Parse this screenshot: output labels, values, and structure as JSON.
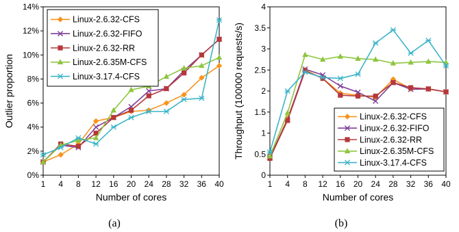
{
  "chart_data": [
    {
      "type": "line",
      "caption": "(a)",
      "x": [
        "1",
        "4",
        "8",
        "12",
        "16",
        "20",
        "24",
        "28",
        "32",
        "36",
        "40"
      ],
      "xlabel": "Number of cores",
      "ylabel": "Outlier proportion",
      "ylim": [
        0,
        14
      ],
      "yticks": [
        "0%",
        "2%",
        "4%",
        "6%",
        "8%",
        "10%",
        "12%",
        "14%"
      ],
      "legend_position": "top-left",
      "series": [
        {
          "name": "Linux-2.6.32-CFS",
          "color": "#f7941d",
          "marker": "diamond",
          "values": [
            1.1,
            1.7,
            2.6,
            4.5,
            4.8,
            5.3,
            5.4,
            6.0,
            6.7,
            8.1,
            9.1
          ]
        },
        {
          "name": "Linux-2.6.32-FIFO",
          "color": "#7e3f98",
          "marker": "x",
          "values": [
            1.1,
            2.5,
            2.3,
            4.0,
            4.8,
            5.7,
            7.0,
            7.2,
            8.7,
            10.0,
            11.3
          ]
        },
        {
          "name": "Linux-2.6.32-RR",
          "color": "#b5383a",
          "marker": "square",
          "values": [
            1.1,
            2.6,
            2.4,
            3.5,
            4.8,
            5.4,
            6.6,
            7.2,
            8.5,
            10.0,
            11.3
          ]
        },
        {
          "name": "Linux-2.6.35M-CFS",
          "color": "#8dc63f",
          "marker": "triangle",
          "values": [
            1.1,
            2.5,
            2.9,
            3.1,
            5.4,
            7.1,
            7.4,
            8.2,
            8.9,
            9.1,
            9.8
          ]
        },
        {
          "name": "Linux-3.17.4-CFS",
          "color": "#3cb4c8",
          "marker": "asterisk",
          "values": [
            1.7,
            2.3,
            3.1,
            2.6,
            4.0,
            4.8,
            5.3,
            5.3,
            6.3,
            6.4,
            12.9
          ]
        }
      ]
    },
    {
      "type": "line",
      "caption": "(b)",
      "x": [
        "1",
        "4",
        "8",
        "12",
        "16",
        "20",
        "24",
        "28",
        "32",
        "36",
        "40"
      ],
      "xlabel": "Number of cores",
      "ylabel": "Throughput (100000 requests/s)",
      "ylim": [
        0,
        4
      ],
      "yticks": [
        "0",
        "0.5",
        "1",
        "1.5",
        "2",
        "2.5",
        "3",
        "3.5",
        "4"
      ],
      "legend_position": "bottom-right",
      "series": [
        {
          "name": "Linux-2.6.32-CFS",
          "color": "#f7941d",
          "marker": "diamond",
          "values": [
            0.42,
            1.35,
            2.5,
            2.3,
            1.95,
            1.9,
            1.85,
            2.28,
            2.05,
            2.05,
            1.98
          ]
        },
        {
          "name": "Linux-2.6.32-FIFO",
          "color": "#7e3f98",
          "marker": "x",
          "values": [
            0.42,
            1.32,
            2.52,
            2.38,
            2.12,
            1.97,
            1.76,
            2.2,
            2.04,
            2.05,
            1.98
          ]
        },
        {
          "name": "Linux-2.6.32-RR",
          "color": "#b5383a",
          "marker": "square",
          "values": [
            0.4,
            1.3,
            2.48,
            2.3,
            1.9,
            1.88,
            1.88,
            2.2,
            2.08,
            2.05,
            1.98
          ]
        },
        {
          "name": "Linux-2.6.35M-CFS",
          "color": "#8dc63f",
          "marker": "triangle",
          "values": [
            0.45,
            1.48,
            2.86,
            2.75,
            2.82,
            2.77,
            2.75,
            2.66,
            2.68,
            2.7,
            2.68
          ]
        },
        {
          "name": "Linux-3.17.4-CFS",
          "color": "#3cb4c8",
          "marker": "asterisk",
          "values": [
            0.55,
            2.0,
            2.45,
            2.32,
            2.3,
            2.4,
            3.14,
            3.45,
            2.9,
            3.2,
            2.6
          ]
        }
      ]
    }
  ]
}
